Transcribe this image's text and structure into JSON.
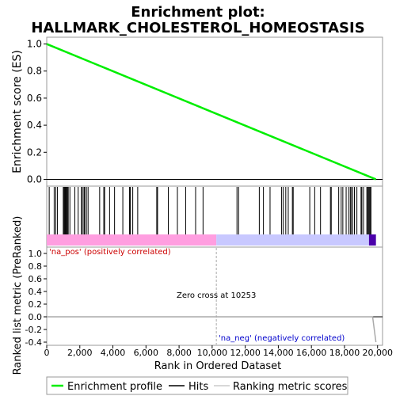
{
  "chart_data": {
    "type": "line",
    "title_line1": "Enrichment plot:",
    "title_line2": "HALLMARK_CHOLESTEROL_HOMEOSTASIS",
    "es_panel": {
      "ylabel": "Enrichment score (ES)",
      "ylim": [
        -0.05,
        1.05
      ],
      "yticks": [
        "0.0",
        "0.2",
        "0.4",
        "0.6",
        "0.8",
        "1.0"
      ],
      "ytick_values": [
        0.0,
        0.2,
        0.4,
        0.6,
        0.8,
        1.0
      ],
      "line_color": "#00ee00",
      "series": [
        {
          "name": "Enrichment profile",
          "x": [
            0,
            19900
          ],
          "y": [
            1.0,
            0.0
          ]
        }
      ]
    },
    "hits": [
      150,
      450,
      550,
      650,
      1000,
      1050,
      1100,
      1150,
      1200,
      1250,
      1300,
      1400,
      1700,
      1900,
      2100,
      2150,
      2250,
      2300,
      2400,
      2500,
      3200,
      3450,
      3500,
      3800,
      4100,
      4600,
      5000,
      5050,
      5200,
      5500,
      6650,
      6700,
      7350,
      7900,
      8400,
      9000,
      9450,
      11500,
      11600,
      12850,
      13100,
      13500,
      14200,
      14300,
      14450,
      14600,
      14850,
      14900,
      15900,
      16200,
      16550,
      17150,
      17200,
      17650,
      17800,
      17900,
      18100,
      18250,
      18350,
      18400,
      18500,
      18600,
      18750,
      19000,
      19050,
      19150,
      19350,
      19400,
      19450,
      19500,
      19550,
      19600
    ],
    "hits_color": "#000000",
    "color_bar": {
      "left_color": "#ff9ee0",
      "right_color": "#c8c8ff",
      "end_color": "#4b00aa"
    },
    "metric_panel": {
      "ylabel": "Ranked list metric (PreRanked)",
      "ylim": [
        -0.45,
        1.1
      ],
      "yticks": [
        "1.0",
        "0.8",
        "0.6",
        "0.4",
        "0.2",
        "0.0",
        "-0.2",
        "-0.4"
      ],
      "ytick_values": [
        1.0,
        0.8,
        0.6,
        0.4,
        0.2,
        0.0,
        -0.2,
        -0.4
      ],
      "min_value": -0.4,
      "label_pos": "'na_pos' (positively correlated)",
      "label_neg": "'na_neg' (negatively correlated)",
      "zero_cross_label": "Zero cross at 10253",
      "zero_cross": 10253
    },
    "xaxis": {
      "xlabel": "Rank in Ordered Dataset",
      "xlim": [
        0,
        20300
      ],
      "xticks": [
        "0",
        "2,000",
        "4,000",
        "6,000",
        "8,000",
        "10,000",
        "12,000",
        "14,000",
        "16,000",
        "18,000",
        "20,000"
      ],
      "xtick_values": [
        0,
        2000,
        4000,
        6000,
        8000,
        10000,
        12000,
        14000,
        16000,
        18000,
        20000
      ],
      "n_genes": 19900
    },
    "legend": {
      "placement": "bottom",
      "items": [
        "Enrichment profile",
        "Hits",
        "Ranking metric scores"
      ]
    }
  }
}
